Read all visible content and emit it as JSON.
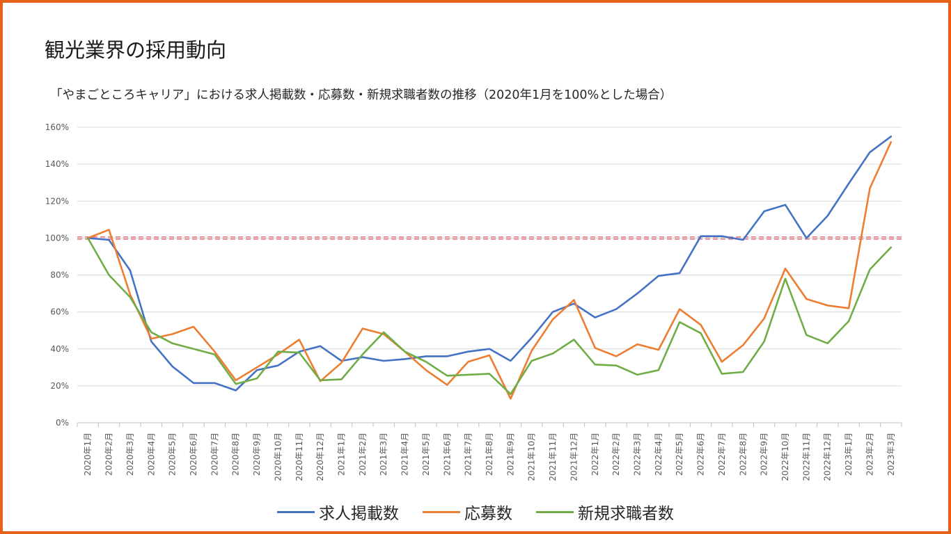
{
  "title": "観光業界の採用動向",
  "subtitle": "「やまごところキャリア」における求人掲載数・応募数・新規求職者数の推移（2020年1月を100%とした場合）",
  "colors": {
    "frame": "#e8611a",
    "reference_line": "#e0505a",
    "grid": "#d9d9d9"
  },
  "chart_data": {
    "type": "line",
    "categories": [
      "2020年1月",
      "2020年2月",
      "2020年3月",
      "2020年4月",
      "2020年5月",
      "2020年6月",
      "2020年7月",
      "2020年8月",
      "2020年9月",
      "2020年10月",
      "2020年11月",
      "2020年12月",
      "2021年1月",
      "2021年2月",
      "2021年3月",
      "2021年4月",
      "2021年5月",
      "2021年6月",
      "2021年7月",
      "2021年8月",
      "2021年9月",
      "2021年10月",
      "2021年11月",
      "2021年12月",
      "2022年1月",
      "2022年2月",
      "2022年3月",
      "2022年4月",
      "2022年5月",
      "2022年6月",
      "2022年7月",
      "2022年8月",
      "2022年9月",
      "2022年10月",
      "2022年11月",
      "2022年12月",
      "2023年1月",
      "2023年2月",
      "2023年3月"
    ],
    "ylim": [
      0,
      160
    ],
    "yticks": [
      "0%",
      "20%",
      "40%",
      "60%",
      "80%",
      "100%",
      "120%",
      "140%",
      "160%"
    ],
    "grid": true,
    "legend_position": "bottom",
    "reference_line": 100,
    "series": [
      {
        "name": "求人掲載数",
        "color": "#4472c4",
        "values": [
          100,
          99,
          82.5,
          44,
          30.5,
          21.5,
          21.5,
          17.5,
          28.5,
          31,
          38.5,
          41.5,
          33.5,
          35.5,
          33.5,
          34.5,
          36,
          36,
          38.5,
          40,
          33.5,
          46,
          60,
          64.5,
          57,
          61.5,
          70,
          79.5,
          81,
          101,
          101,
          99,
          114.5,
          118,
          100,
          112,
          129.5,
          146.5,
          155
        ]
      },
      {
        "name": "応募数",
        "color": "#ed7d31",
        "values": [
          100,
          104.5,
          69.5,
          45.5,
          48,
          52,
          38.5,
          23,
          30,
          37,
          45,
          22.5,
          32.5,
          51,
          48,
          38.5,
          28.5,
          20.5,
          33,
          36.5,
          13,
          39,
          56,
          66.5,
          40.5,
          36,
          42.5,
          39.5,
          61.5,
          53,
          33,
          42,
          56.5,
          83.5,
          67,
          63.5,
          62,
          127,
          152
        ]
      },
      {
        "name": "新規求職者数",
        "color": "#70ad47",
        "values": [
          100,
          80,
          68,
          49,
          43,
          40,
          37,
          21,
          24,
          38.5,
          38,
          23,
          23.5,
          37,
          49,
          38.5,
          33,
          25.5,
          26,
          26.5,
          15.5,
          33.5,
          37.5,
          45,
          31.5,
          31,
          26,
          28.5,
          54.5,
          48.5,
          26.5,
          27.5,
          44,
          78,
          47.5,
          43,
          55,
          83,
          95
        ]
      }
    ]
  }
}
